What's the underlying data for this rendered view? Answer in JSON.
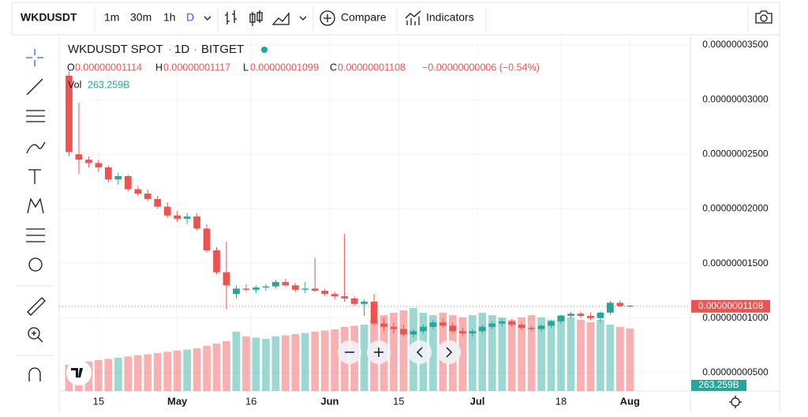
{
  "toolbar": {
    "symbol": "WKDUSDT",
    "intervals": [
      "1m",
      "30m",
      "1h",
      "D"
    ],
    "compare": "Compare",
    "indicators": "Indicators"
  },
  "chart_data": {
    "type": "candlestick",
    "title": {
      "symbol": "WKDUSDT SPOT",
      "interval": "1D",
      "exchange": "BITGET"
    },
    "legend": {
      "o": "O",
      "open": "0.00000001114",
      "h": "H",
      "high": "0.00000001117",
      "l": "L",
      "low": "0.00000001099",
      "c": "C",
      "close": "0.00000001108",
      "change": "−0.00000000006 (−0.54%)",
      "vol": "Vol"
    },
    "x": [
      0,
      2,
      4,
      6,
      8,
      10,
      12,
      14,
      16,
      18,
      20,
      22,
      24,
      26,
      28,
      30,
      32,
      34,
      36,
      38,
      40,
      42,
      44,
      46,
      48,
      50,
      52,
      54,
      56,
      58,
      60,
      62,
      64,
      66,
      68,
      70,
      72,
      74,
      76,
      78,
      80,
      82,
      84,
      86,
      88,
      90,
      92,
      94,
      96,
      98,
      100,
      102,
      104,
      106,
      108,
      110,
      112,
      114
    ],
    "open": [
      3.22e-08,
      2.5e-08,
      2.45e-08,
      2.42e-08,
      2.38e-08,
      2.27e-08,
      2.3e-08,
      2.18e-08,
      2.14e-08,
      2.09e-08,
      2.02e-08,
      1.94e-08,
      1.91e-08,
      1.93e-08,
      1.82e-08,
      1.62e-08,
      1.42e-08,
      1.22e-08,
      1.27e-08,
      1.26e-08,
      1.28e-08,
      1.29e-08,
      1.33e-08,
      1.3e-08,
      1.26e-08,
      1.27e-08,
      1.25e-08,
      1.22e-08,
      1.2e-08,
      1.18e-08,
      1.13e-08,
      1.15e-08,
      9.5e-09,
      9.2e-09,
      9e-09,
      8.5e-09,
      8.8e-09,
      9.2e-09,
      9.6e-09,
      9.3e-09,
      8.8e-09,
      8.6e-09,
      8.8e-09,
      9.2e-09,
      9.5e-09,
      9.7e-09,
      9.4e-09,
      9.1e-09,
      9e-09,
      9.3e-09,
      9.7e-09,
      1.02e-08,
      1.04e-08,
      1.02e-08,
      1e-08,
      1.05e-08,
      1.14e-08,
      1.114e-08
    ],
    "high": [
      3.26e-08,
      2.97e-08,
      2.48e-08,
      2.45e-08,
      2.4e-08,
      2.33e-08,
      2.31e-08,
      2.21e-08,
      2.18e-08,
      2.12e-08,
      2.06e-08,
      1.98e-08,
      1.96e-08,
      1.96e-08,
      1.86e-08,
      1.65e-08,
      1.7e-08,
      1.3e-08,
      1.31e-08,
      1.3e-08,
      1.31e-08,
      1.35e-08,
      1.36e-08,
      1.32e-08,
      1.33e-08,
      1.55e-08,
      1.27e-08,
      1.24e-08,
      1.77e-08,
      1.2e-08,
      1.17e-08,
      1.22e-08,
      1e-08,
      9.6e-09,
      9.4e-09,
      9e-09,
      9.4e-09,
      9.8e-09,
      1e-08,
      9.6e-09,
      9.1e-09,
      9e-09,
      9.4e-09,
      9.7e-09,
      9.9e-09,
      9.9e-09,
      9.6e-09,
      9.3e-09,
      9.4e-09,
      9.8e-09,
      1.03e-08,
      1.06e-08,
      1.06e-08,
      1.05e-08,
      1.06e-08,
      1.16e-08,
      1.16e-08,
      1.117e-08
    ],
    "low": [
      2.48e-08,
      2.32e-08,
      2.38e-08,
      2.34e-08,
      2.24e-08,
      2.22e-08,
      2.16e-08,
      2.12e-08,
      2.07e-08,
      2e-08,
      1.92e-08,
      1.88e-08,
      1.86e-08,
      1.8e-08,
      1.6e-08,
      1.4e-08,
      1.08e-08,
      1.18e-08,
      1.24e-08,
      1.23e-08,
      1.25e-08,
      1.27e-08,
      1.29e-08,
      1.24e-08,
      1.23e-08,
      1.24e-08,
      1.2e-08,
      1.17e-08,
      1.15e-08,
      1.11e-08,
      1.02e-08,
      9.3e-09,
      8.8e-09,
      8.6e-09,
      8.3e-09,
      8.2e-09,
      8.6e-09,
      9e-09,
      9.1e-09,
      8.6e-09,
      8.4e-09,
      8.3e-09,
      8.6e-09,
      9e-09,
      9.2e-09,
      9.2e-09,
      8.9e-09,
      8.8e-09,
      8.8e-09,
      9.1e-09,
      9.5e-09,
      1e-08,
      1e-08,
      9.8e-09,
      9.6e-09,
      1.03e-08,
      1.1e-08,
      1.099e-08
    ],
    "close": [
      2.52e-08,
      2.45e-08,
      2.42e-08,
      2.38e-08,
      2.27e-08,
      2.3e-08,
      2.18e-08,
      2.14e-08,
      2.09e-08,
      2.02e-08,
      1.94e-08,
      1.91e-08,
      1.93e-08,
      1.82e-08,
      1.62e-08,
      1.42e-08,
      1.3e-08,
      1.27e-08,
      1.26e-08,
      1.28e-08,
      1.29e-08,
      1.33e-08,
      1.3e-08,
      1.26e-08,
      1.27e-08,
      1.25e-08,
      1.22e-08,
      1.2e-08,
      1.18e-08,
      1.13e-08,
      1.15e-08,
      9.5e-09,
      9.2e-09,
      9e-09,
      8.5e-09,
      8.8e-09,
      9.2e-09,
      9.6e-09,
      9.3e-09,
      8.8e-09,
      8.6e-09,
      8.8e-09,
      9.2e-09,
      9.5e-09,
      9.7e-09,
      9.4e-09,
      9.1e-09,
      9e-09,
      9.3e-09,
      9.7e-09,
      1.02e-08,
      1.04e-08,
      1.02e-08,
      1e-08,
      1.05e-08,
      1.14e-08,
      1.11e-08,
      1.108e-08
    ],
    "volume": [
      110,
      120,
      125,
      130,
      135,
      140,
      145,
      150,
      155,
      160,
      165,
      170,
      175,
      180,
      190,
      200,
      210,
      250,
      230,
      225,
      220,
      230,
      235,
      240,
      245,
      250,
      255,
      260,
      270,
      275,
      280,
      300,
      320,
      330,
      340,
      350,
      330,
      320,
      330,
      320,
      310,
      320,
      330,
      320,
      310,
      300,
      310,
      320,
      310,
      300,
      320,
      310,
      300,
      290,
      300,
      280,
      270,
      263.259
    ],
    "volume_label": "263.259B",
    "up_color": "#26a69a",
    "down_color": "#ef5350",
    "xlim": [
      -2,
      126.3
    ],
    "xticks": [
      {
        "value": 6,
        "label": "15"
      },
      {
        "value": 22,
        "label": "May"
      },
      {
        "value": 37,
        "label": "16"
      },
      {
        "value": 53,
        "label": "Jun"
      },
      {
        "value": 67,
        "label": "15"
      },
      {
        "value": 83,
        "label": "Jul"
      },
      {
        "value": 100,
        "label": "18"
      },
      {
        "value": 114,
        "label": "Aug"
      }
    ],
    "ylim": [
      3.33e-09,
      3.587e-08
    ],
    "yticks": [
      {
        "value": 3.5e-08,
        "label": "0.00000003500"
      },
      {
        "value": 3e-08,
        "label": "0.00000003000"
      },
      {
        "value": 2.5e-08,
        "label": "0.00000002500"
      },
      {
        "value": 2e-08,
        "label": "0.00000002000"
      },
      {
        "value": 1.5e-08,
        "label": "0.00000001500"
      },
      {
        "value": 1e-08,
        "label": "0.00000001000"
      },
      {
        "value": 5e-09,
        "label": "0.00000000500"
      }
    ],
    "volume_ylim": [
      0,
      1000
    ],
    "last_price": {
      "value": 1.108e-08,
      "label": "0.00000001108"
    },
    "grid": true
  }
}
